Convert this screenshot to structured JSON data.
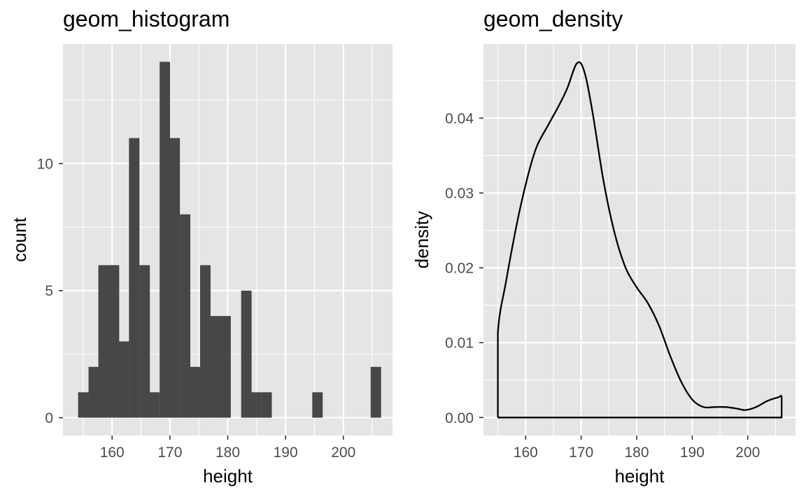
{
  "chart_data": [
    {
      "type": "bar",
      "title": "geom_histogram",
      "xlabel": "height",
      "ylabel": "count",
      "xlim": [
        151.5,
        208.5
      ],
      "ylim": [
        -0.7,
        14.7
      ],
      "xticks": [
        160,
        170,
        180,
        190,
        200
      ],
      "xtick_labels": [
        "160",
        "170",
        "180",
        "190",
        "200"
      ],
      "yticks": [
        0,
        5,
        10
      ],
      "ytick_labels": [
        "0",
        "5",
        "10"
      ],
      "bin_width": 1.76,
      "bins": [
        {
          "x": 155.0,
          "count": 1
        },
        {
          "x": 156.8,
          "count": 2
        },
        {
          "x": 158.5,
          "count": 6
        },
        {
          "x": 160.3,
          "count": 6
        },
        {
          "x": 162.0,
          "count": 3
        },
        {
          "x": 163.8,
          "count": 11
        },
        {
          "x": 165.6,
          "count": 6
        },
        {
          "x": 167.3,
          "count": 1
        },
        {
          "x": 169.1,
          "count": 14
        },
        {
          "x": 170.8,
          "count": 11
        },
        {
          "x": 172.6,
          "count": 8
        },
        {
          "x": 174.4,
          "count": 2
        },
        {
          "x": 176.1,
          "count": 6
        },
        {
          "x": 177.9,
          "count": 4
        },
        {
          "x": 179.6,
          "count": 4
        },
        {
          "x": 181.4,
          "count": 0
        },
        {
          "x": 183.2,
          "count": 5
        },
        {
          "x": 184.9,
          "count": 1
        },
        {
          "x": 186.7,
          "count": 1
        },
        {
          "x": 195.5,
          "count": 1
        },
        {
          "x": 205.6,
          "count": 2
        }
      ],
      "grid": true,
      "colors": {
        "panel": "#e5e5e5",
        "bar": "#474747",
        "grid": "#ffffff"
      }
    },
    {
      "type": "line",
      "title": "geom_density",
      "xlabel": "height",
      "ylabel": "density",
      "xlim": [
        152.4,
        208.6
      ],
      "ylim": [
        -0.0024,
        0.0499
      ],
      "xticks": [
        160,
        170,
        180,
        190,
        200
      ],
      "xtick_labels": [
        "160",
        "170",
        "180",
        "190",
        "200"
      ],
      "yticks": [
        0,
        0.01,
        0.02,
        0.03,
        0.04
      ],
      "ytick_labels": [
        "0.00",
        "0.01",
        "0.02",
        "0.03",
        "0.04"
      ],
      "x": [
        155.0,
        155.0,
        156.5,
        158.5,
        160.4,
        162.0,
        164.0,
        166.0,
        167.5,
        169.2,
        170.5,
        172.0,
        174.0,
        176.0,
        178.0,
        180.0,
        182.0,
        184.0,
        186.0,
        188.0,
        190.0,
        192.0,
        194.0,
        196.0,
        198.0,
        199.6,
        201.5,
        203.5,
        205.5,
        206.1,
        206.1,
        155.0
      ],
      "y": [
        0.0,
        0.0113,
        0.0183,
        0.0262,
        0.0323,
        0.0362,
        0.039,
        0.0417,
        0.044,
        0.0473,
        0.0464,
        0.041,
        0.0317,
        0.0247,
        0.02,
        0.0174,
        0.0153,
        0.0123,
        0.0083,
        0.0048,
        0.0024,
        0.0014,
        0.0014,
        0.0014,
        0.0012,
        0.001,
        0.0014,
        0.0022,
        0.0027,
        0.0027,
        0.0,
        0.0
      ],
      "grid": true,
      "colors": {
        "panel": "#e5e5e5",
        "line": "#000000",
        "grid": "#ffffff"
      }
    }
  ]
}
